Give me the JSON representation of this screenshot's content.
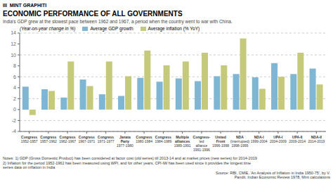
{
  "chart_data": {
    "type": "bar",
    "title": "ECONOMIC PERFORMANCE OF ALL GOVERNMENTS",
    "subtitle": "India's GDP grew at the slowest pace between 1962 and 1967, a period when the country went to war with China.",
    "y_label": "(Year-on-year change in %)",
    "annotations": [
      "III  MINT GRAPHITI",
      "Notes: 1) GDP (Gross Domestic Product) has been considered at factor cost (old series) till 2013-14 and at market prices (new series) for 2014-2019\n2) Inflation for the period 1952-1962 has been measured using WPI, and for other years, CPI-IW has been used since it provides the longest time\nseries data on inflation in India",
      "Source: RBI, CMIE, 'An Analysis of Inflation in India 1950-75', by V.\nPandit, Indian Economic Review 1978, Mint calculations"
    ],
    "categories": [
      "Congress\n1952-1957",
      "Congress\n1957-1962",
      "Congress\n1962-1967",
      "Congress\n1967-1971",
      "Congress\n1971-1977",
      "Janata Party\n1977-1980",
      "Congress\n1980-1984",
      "Congress\n1984-1989",
      "Multiple alliances\n1989-1991",
      "Congress-\nled alliance\n1991-1996",
      "United Front\n1996-1998",
      "NDA\n(Interrupted)\n1998-1999",
      "NDA-I\n1999-2004",
      "UPA-I\n2004-2009",
      "UPA-II\n2009-2014",
      "NDA-II\n2014-2019"
    ],
    "series": [
      {
        "name": "Average GDP growth",
        "color": "#7eb6d4",
        "values": [
          4.2,
          3.7,
          2.2,
          5.5,
          2.8,
          2.5,
          5.8,
          5.1,
          5.7,
          5.2,
          6.1,
          6.5,
          5.9,
          8.5,
          6.5,
          7.5
        ]
      },
      {
        "name": "Average inflation (% YoY)",
        "color": "#c5c97a",
        "values": [
          -1.0,
          3.4,
          8.8,
          4.3,
          8.8,
          6.1,
          10.8,
          8.1,
          8.8,
          10.4,
          8.1,
          13.0,
          3.8,
          6.0,
          10.4,
          4.6
        ]
      }
    ],
    "ylim": [
      -4,
      14
    ],
    "yticks": [
      -4,
      -2,
      0,
      2,
      4,
      6,
      8,
      10,
      12,
      14
    ],
    "grid": true,
    "legend": "upper left"
  }
}
